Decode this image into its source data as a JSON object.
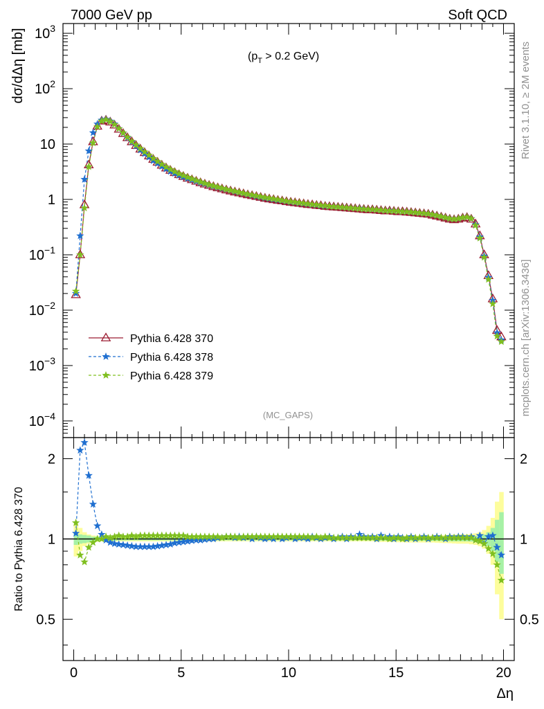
{
  "header": {
    "energy_label": "7000 GeV pp",
    "process_label": "Soft QCD"
  },
  "side_labels": {
    "rivet": "Rivet 3.1.10, ≥ 2M events",
    "mcplots": "mcplots.cern.ch [arXiv:1306.3436]"
  },
  "chart_data": [
    {
      "type": "line",
      "ylabel": "dσ/dΔη [mb]",
      "annotation": "(p_T > 0.2 GeV)",
      "annotation_main": "(p",
      "annotation_sub": "T",
      "annotation_rest": " > 0.2 GeV)",
      "watermark": "(MC_GAPS)",
      "y_scale": "log",
      "xlim": [
        -0.5,
        20.5
      ],
      "ylim": [
        5e-05,
        1500
      ],
      "y_tick_labels": [
        {
          "value": 0.0001,
          "base": "10",
          "exp": "−4"
        },
        {
          "value": 0.001,
          "base": "10",
          "exp": "−3"
        },
        {
          "value": 0.01,
          "base": "10",
          "exp": "−2"
        },
        {
          "value": 0.1,
          "base": "10",
          "exp": "−1"
        },
        {
          "value": 1,
          "base": "1",
          "exp": ""
        },
        {
          "value": 10,
          "base": "10",
          "exp": ""
        },
        {
          "value": 100,
          "base": "10",
          "exp": "2"
        },
        {
          "value": 1000,
          "base": "10",
          "exp": "3"
        }
      ],
      "legend_position": "center-left",
      "x": [
        0.1,
        0.3,
        0.5,
        0.7,
        0.9,
        1.1,
        1.3,
        1.5,
        1.7,
        1.9,
        2.1,
        2.3,
        2.5,
        2.7,
        2.9,
        3.1,
        3.3,
        3.5,
        3.7,
        3.9,
        4.1,
        4.3,
        4.5,
        4.7,
        4.9,
        5.1,
        5.3,
        5.5,
        5.7,
        5.9,
        6.1,
        6.3,
        6.5,
        6.7,
        6.9,
        7.1,
        7.3,
        7.5,
        7.7,
        7.9,
        8.1,
        8.3,
        8.5,
        8.7,
        8.9,
        9.1,
        9.3,
        9.5,
        9.7,
        9.9,
        10.1,
        10.3,
        10.5,
        10.7,
        10.9,
        11.1,
        11.3,
        11.5,
        11.7,
        11.9,
        12.1,
        12.3,
        12.5,
        12.7,
        12.9,
        13.1,
        13.3,
        13.5,
        13.7,
        13.9,
        14.1,
        14.3,
        14.5,
        14.7,
        14.9,
        15.1,
        15.3,
        15.5,
        15.7,
        15.9,
        16.1,
        16.3,
        16.5,
        16.7,
        16.9,
        17.1,
        17.3,
        17.5,
        17.7,
        17.9,
        18.1,
        18.3,
        18.5,
        18.7,
        18.9,
        19.1,
        19.3,
        19.5,
        19.7,
        19.9
      ],
      "series": [
        {
          "name": "Pythia 6.428 370",
          "color": "#9b1b30",
          "marker": "triangle-open",
          "line": "solid",
          "values": [
            0.019,
            0.1,
            0.8,
            4.2,
            11,
            21,
            26,
            27,
            25,
            22,
            18.5,
            15.5,
            13,
            11,
            9.4,
            8.1,
            7.0,
            6.1,
            5.3,
            4.7,
            4.15,
            3.7,
            3.35,
            3.05,
            2.8,
            2.6,
            2.42,
            2.27,
            2.13,
            2.0,
            1.89,
            1.79,
            1.7,
            1.62,
            1.55,
            1.48,
            1.42,
            1.36,
            1.31,
            1.26,
            1.21,
            1.17,
            1.13,
            1.09,
            1.05,
            1.02,
            0.99,
            0.96,
            0.94,
            0.91,
            0.89,
            0.87,
            0.85,
            0.83,
            0.81,
            0.8,
            0.78,
            0.77,
            0.75,
            0.74,
            0.73,
            0.72,
            0.71,
            0.7,
            0.69,
            0.68,
            0.67,
            0.66,
            0.65,
            0.65,
            0.64,
            0.63,
            0.62,
            0.62,
            0.61,
            0.6,
            0.6,
            0.59,
            0.58,
            0.57,
            0.56,
            0.55,
            0.54,
            0.52,
            0.5,
            0.48,
            0.46,
            0.44,
            0.43,
            0.44,
            0.46,
            0.47,
            0.44,
            0.36,
            0.22,
            0.1,
            0.042,
            0.016,
            0.0043,
            0.0033
          ]
        },
        {
          "name": "Pythia 6.428 378",
          "color": "#1f6fd0",
          "marker": "star",
          "line": "dashed",
          "values": [
            0.02,
            0.22,
            2.3,
            7.5,
            16,
            23,
            27,
            28,
            26,
            23,
            19,
            15.7,
            13,
            10.9,
            9.2,
            7.8,
            6.7,
            5.8,
            5.0,
            4.45,
            3.95,
            3.55,
            3.2,
            2.95,
            2.72,
            2.54,
            2.38,
            2.25,
            2.13,
            2.01,
            1.91,
            1.81,
            1.72,
            1.65,
            1.57,
            1.51,
            1.45,
            1.38,
            1.33,
            1.28,
            1.23,
            1.18,
            1.14,
            1.1,
            1.06,
            1.03,
            1.0,
            0.97,
            0.95,
            0.92,
            0.9,
            0.88,
            0.86,
            0.84,
            0.82,
            0.8,
            0.79,
            0.77,
            0.76,
            0.75,
            0.74,
            0.73,
            0.72,
            0.71,
            0.7,
            0.69,
            0.69,
            0.67,
            0.66,
            0.66,
            0.65,
            0.64,
            0.63,
            0.63,
            0.62,
            0.61,
            0.6,
            0.6,
            0.59,
            0.58,
            0.57,
            0.56,
            0.55,
            0.53,
            0.51,
            0.49,
            0.47,
            0.45,
            0.44,
            0.45,
            0.47,
            0.48,
            0.45,
            0.35,
            0.21,
            0.095,
            0.039,
            0.015,
            0.0039,
            0.0029
          ]
        },
        {
          "name": "Pythia 6.428 379",
          "color": "#7fbf1f",
          "marker": "star",
          "line": "dashed",
          "values": [
            0.022,
            0.1,
            0.7,
            3.9,
            10.5,
            20.5,
            26,
            27.5,
            25.5,
            22.5,
            19,
            15.9,
            13.3,
            11.2,
            9.6,
            8.3,
            7.2,
            6.3,
            5.5,
            4.85,
            4.3,
            3.85,
            3.48,
            3.17,
            2.91,
            2.7,
            2.51,
            2.35,
            2.2,
            2.07,
            1.95,
            1.84,
            1.75,
            1.67,
            1.59,
            1.52,
            1.46,
            1.4,
            1.34,
            1.29,
            1.24,
            1.2,
            1.16,
            1.12,
            1.08,
            1.05,
            1.02,
            0.99,
            0.96,
            0.93,
            0.91,
            0.89,
            0.87,
            0.85,
            0.83,
            0.81,
            0.8,
            0.78,
            0.77,
            0.75,
            0.74,
            0.73,
            0.72,
            0.71,
            0.7,
            0.69,
            0.68,
            0.67,
            0.66,
            0.66,
            0.65,
            0.64,
            0.63,
            0.62,
            0.62,
            0.61,
            0.6,
            0.6,
            0.59,
            0.58,
            0.57,
            0.56,
            0.55,
            0.53,
            0.51,
            0.49,
            0.47,
            0.45,
            0.44,
            0.45,
            0.47,
            0.48,
            0.45,
            0.34,
            0.2,
            0.09,
            0.036,
            0.013,
            0.0034,
            0.0027
          ]
        }
      ]
    },
    {
      "type": "line",
      "ylabel": "Ratio to Pythia 6.428 370",
      "xlabel": "Δη",
      "y_scale": "log",
      "xlim": [
        -0.5,
        20.5
      ],
      "ylim": [
        0.35,
        2.4
      ],
      "x_ticks": [
        0,
        5,
        10,
        15,
        20
      ],
      "y_tick_labels": [
        {
          "value": 0.5,
          "label": "0.5"
        },
        {
          "value": 1,
          "label": "1"
        },
        {
          "value": 2,
          "label": "2"
        }
      ],
      "reference_line": 1,
      "x": [
        0.1,
        0.3,
        0.5,
        0.7,
        0.9,
        1.1,
        1.3,
        1.5,
        1.7,
        1.9,
        2.1,
        2.3,
        2.5,
        2.7,
        2.9,
        3.1,
        3.3,
        3.5,
        3.7,
        3.9,
        4.1,
        4.3,
        4.5,
        4.7,
        4.9,
        5.1,
        5.3,
        5.5,
        5.7,
        5.9,
        6.1,
        6.3,
        6.5,
        6.7,
        6.9,
        7.1,
        7.3,
        7.5,
        7.7,
        7.9,
        8.1,
        8.3,
        8.5,
        8.7,
        8.9,
        9.1,
        9.3,
        9.5,
        9.7,
        9.9,
        10.1,
        10.3,
        10.5,
        10.7,
        10.9,
        11.1,
        11.3,
        11.5,
        11.7,
        11.9,
        12.1,
        12.3,
        12.5,
        12.7,
        12.9,
        13.1,
        13.3,
        13.5,
        13.7,
        13.9,
        14.1,
        14.3,
        14.5,
        14.7,
        14.9,
        15.1,
        15.3,
        15.5,
        15.7,
        15.9,
        16.1,
        16.3,
        16.5,
        16.7,
        16.9,
        17.1,
        17.3,
        17.5,
        17.7,
        17.9,
        18.1,
        18.3,
        18.5,
        18.7,
        18.9,
        19.1,
        19.3,
        19.5,
        19.7,
        19.9
      ],
      "band_green_halfwidth": [
        0.05,
        0.04,
        0.035,
        0.03,
        0.02,
        0.02,
        0.015,
        0.015,
        0.015,
        0.015,
        0.012,
        0.012,
        0.012,
        0.012,
        0.012,
        0.012,
        0.012,
        0.012,
        0.012,
        0.012,
        0.012,
        0.012,
        0.012,
        0.012,
        0.012,
        0.012,
        0.012,
        0.012,
        0.012,
        0.012,
        0.012,
        0.012,
        0.012,
        0.012,
        0.012,
        0.012,
        0.012,
        0.012,
        0.012,
        0.012,
        0.012,
        0.012,
        0.012,
        0.012,
        0.012,
        0.012,
        0.012,
        0.012,
        0.012,
        0.012,
        0.012,
        0.012,
        0.012,
        0.012,
        0.012,
        0.012,
        0.012,
        0.012,
        0.012,
        0.012,
        0.012,
        0.012,
        0.012,
        0.012,
        0.012,
        0.012,
        0.012,
        0.012,
        0.012,
        0.012,
        0.014,
        0.014,
        0.014,
        0.014,
        0.014,
        0.015,
        0.015,
        0.015,
        0.015,
        0.015,
        0.016,
        0.016,
        0.016,
        0.016,
        0.017,
        0.018,
        0.018,
        0.019,
        0.02,
        0.02,
        0.02,
        0.02,
        0.022,
        0.025,
        0.03,
        0.04,
        0.06,
        0.1,
        0.18,
        0.26
      ],
      "band_yellow_halfwidth": [
        0.14,
        0.1,
        0.06,
        0.04,
        0.03,
        0.025,
        0.02,
        0.02,
        0.02,
        0.02,
        0.02,
        0.02,
        0.02,
        0.02,
        0.02,
        0.02,
        0.02,
        0.02,
        0.02,
        0.02,
        0.02,
        0.02,
        0.02,
        0.02,
        0.02,
        0.02,
        0.02,
        0.02,
        0.02,
        0.02,
        0.02,
        0.02,
        0.02,
        0.02,
        0.02,
        0.02,
        0.02,
        0.02,
        0.02,
        0.02,
        0.02,
        0.02,
        0.02,
        0.02,
        0.02,
        0.02,
        0.02,
        0.02,
        0.02,
        0.02,
        0.02,
        0.02,
        0.02,
        0.02,
        0.02,
        0.02,
        0.02,
        0.02,
        0.02,
        0.02,
        0.02,
        0.02,
        0.02,
        0.02,
        0.02,
        0.02,
        0.02,
        0.02,
        0.02,
        0.02,
        0.025,
        0.025,
        0.025,
        0.025,
        0.025,
        0.028,
        0.028,
        0.03,
        0.03,
        0.03,
        0.03,
        0.03,
        0.03,
        0.03,
        0.032,
        0.034,
        0.035,
        0.036,
        0.038,
        0.04,
        0.04,
        0.04,
        0.045,
        0.05,
        0.06,
        0.08,
        0.12,
        0.2,
        0.38,
        0.5
      ],
      "series": [
        {
          "name": "Pythia 6.428 378",
          "color": "#1f6fd0",
          "marker": "star",
          "line": "dashed",
          "values": [
            1.05,
            2.15,
            2.3,
            1.73,
            1.35,
            1.12,
            1.04,
            0.99,
            0.97,
            0.96,
            0.955,
            0.95,
            0.945,
            0.94,
            0.935,
            0.935,
            0.935,
            0.935,
            0.935,
            0.94,
            0.945,
            0.95,
            0.955,
            0.965,
            0.97,
            0.975,
            0.98,
            0.985,
            0.99,
            0.99,
            0.995,
            1.0,
            1.0,
            1.01,
            1.01,
            1.02,
            1.02,
            1.01,
            1.02,
            1.01,
            1.02,
            1.0,
            1.02,
            1.01,
            1.0,
            1.01,
            1.0,
            1.02,
            1.0,
            1.01,
            1.02,
            1.0,
            1.01,
            1.01,
            1.0,
            1.02,
            1.01,
            1.0,
            1.01,
            1.02,
            1.0,
            1.01,
            1.02,
            1.0,
            1.02,
            1.01,
            1.04,
            1.02,
            1.01,
            1.02,
            1.0,
            1.03,
            1.01,
            1.02,
            1.0,
            1.02,
            1.01,
            1.0,
            1.02,
            1.0,
            1.01,
            1.02,
            1.0,
            1.01,
            1.02,
            1.01,
            1.0,
            1.02,
            1.01,
            1.02,
            1.02,
            1.01,
            1.02,
            0.99,
            1.03,
            0.96,
            1.02,
            1.03,
            0.93,
            0.87
          ]
        },
        {
          "name": "Pythia 6.428 379",
          "color": "#7fbf1f",
          "marker": "star",
          "line": "dashed",
          "values": [
            1.15,
            0.87,
            0.82,
            0.93,
            0.97,
            1.0,
            1.0,
            1.02,
            1.01,
            1.02,
            1.03,
            1.02,
            1.02,
            1.03,
            1.02,
            1.03,
            1.03,
            1.03,
            1.03,
            1.03,
            1.03,
            1.03,
            1.03,
            1.03,
            1.03,
            1.03,
            1.02,
            1.02,
            1.02,
            1.02,
            1.02,
            1.02,
            1.02,
            1.02,
            1.01,
            1.02,
            1.02,
            1.02,
            1.01,
            1.02,
            1.02,
            1.02,
            1.02,
            1.02,
            1.02,
            1.02,
            1.02,
            1.02,
            1.02,
            1.02,
            1.02,
            1.02,
            1.02,
            1.02,
            1.02,
            1.01,
            1.02,
            1.01,
            1.02,
            1.01,
            1.01,
            1.01,
            1.01,
            1.01,
            1.01,
            1.01,
            1.01,
            1.01,
            1.01,
            1.01,
            1.01,
            1.01,
            1.01,
            1.0,
            1.01,
            1.01,
            1.0,
            1.01,
            1.01,
            1.01,
            1.01,
            1.01,
            1.01,
            1.01,
            1.01,
            1.01,
            1.01,
            1.01,
            1.01,
            1.01,
            1.01,
            1.01,
            1.01,
            0.99,
            0.98,
            0.96,
            0.92,
            0.88,
            0.8,
            0.7
          ]
        }
      ]
    }
  ]
}
